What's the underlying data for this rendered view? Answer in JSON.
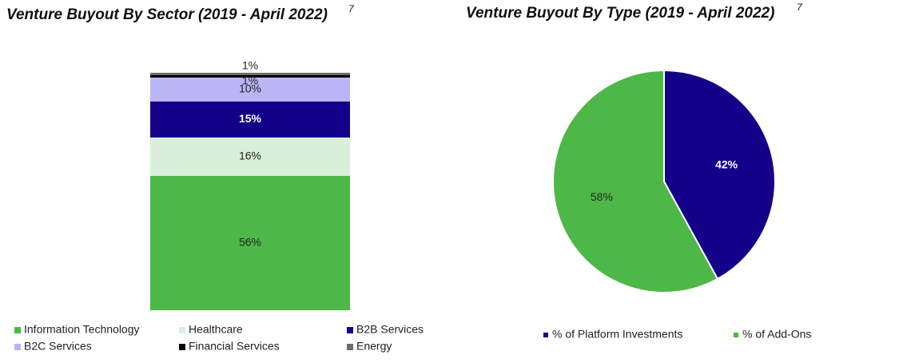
{
  "chart_data": [
    {
      "type": "stacked_bar",
      "title": "Venture Buyout By Sector (2019 - April 2022)",
      "title_footnote": "7",
      "series": [
        {
          "name": "Information Technology",
          "color": "#4db848",
          "values": [
            56
          ],
          "value_labels": [
            "56%"
          ]
        },
        {
          "name": "Healthcare",
          "color": "#d9efd9",
          "values": [
            16
          ],
          "value_labels": [
            "16%"
          ]
        },
        {
          "name": "B2B Services",
          "color": "#15008a",
          "values": [
            15
          ],
          "value_labels": [
            "15%"
          ]
        },
        {
          "name": "B2C Services",
          "color": "#bcb5f5",
          "values": [
            10
          ],
          "value_labels": [
            "10%"
          ]
        },
        {
          "name": "Financial Services",
          "color": "#000000",
          "values": [
            1
          ],
          "value_labels": [
            "1%"
          ]
        },
        {
          "name": "Energy",
          "color": "#6d6d6d",
          "values": [
            1
          ],
          "value_labels": [
            "1%"
          ]
        }
      ]
    },
    {
      "type": "pie",
      "title": "Venture Buyout By Type (2019 - April 2022)",
      "title_footnote": "7",
      "categories": [
        "% of Platform Investments",
        "% of Add-Ons"
      ],
      "colors": [
        "#15008a",
        "#4db848"
      ],
      "values": [
        42,
        58
      ],
      "value_labels": [
        "42%",
        "58%"
      ]
    }
  ]
}
